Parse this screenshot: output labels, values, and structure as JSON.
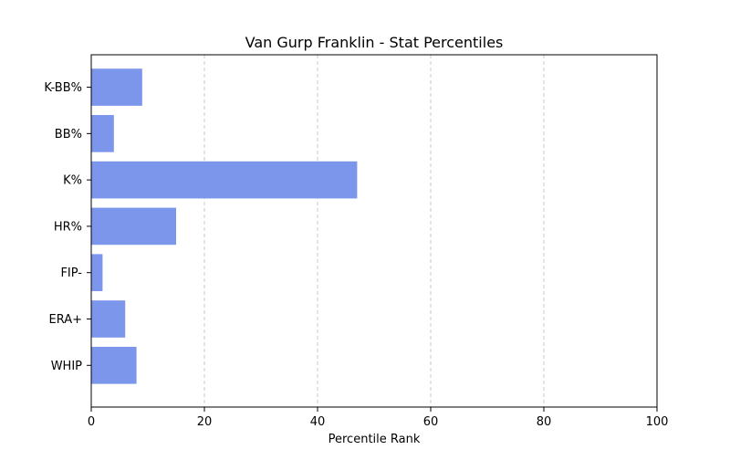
{
  "chart_data": {
    "type": "bar",
    "orientation": "horizontal",
    "title": "Van Gurp Franklin - Stat Percentiles",
    "xlabel": "Percentile Rank",
    "ylabel": "",
    "xlim": [
      0,
      100
    ],
    "xticks": [
      0,
      20,
      40,
      60,
      80,
      100
    ],
    "grid": "x-dashed",
    "legend": "none",
    "bar_color": "#7b96ea",
    "categories": [
      "K-BB%",
      "BB%",
      "K%",
      "HR%",
      "FIP-",
      "ERA+",
      "WHIP"
    ],
    "values": [
      9,
      4,
      47,
      15,
      2,
      6,
      8
    ]
  }
}
